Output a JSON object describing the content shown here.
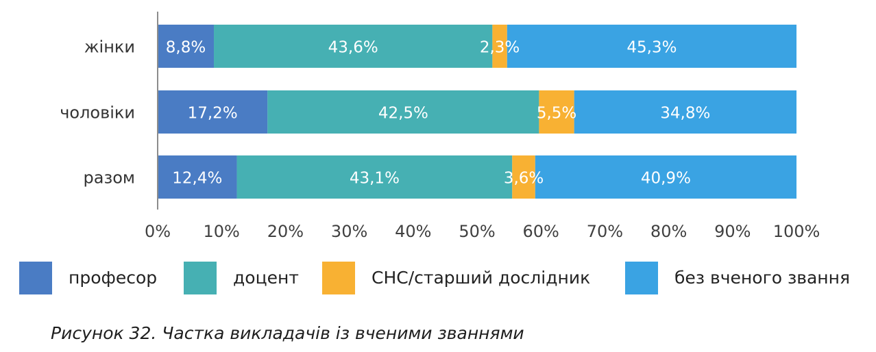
{
  "chart_data": {
    "type": "bar",
    "orientation": "horizontal",
    "stacked": true,
    "categories": [
      "жінки",
      "чоловіки",
      "разом"
    ],
    "series": [
      {
        "name": "професор",
        "color": "#4a7cc4",
        "values": [
          8.8,
          17.2,
          12.4
        ],
        "labels": [
          "8,8%",
          "17,2%",
          "12,4%"
        ]
      },
      {
        "name": "доцент",
        "color": "#46b0b3",
        "values": [
          43.6,
          42.5,
          43.1
        ],
        "labels": [
          "43,6%",
          "42,5%",
          "43,1%"
        ]
      },
      {
        "name": "СНС/старший дослідник",
        "color": "#f8b133",
        "values": [
          2.3,
          5.5,
          3.6
        ],
        "labels": [
          "2,3%",
          "5,5%",
          "3,6%"
        ]
      },
      {
        "name": "без вченого звання",
        "color": "#3aa3e3",
        "values": [
          45.3,
          34.8,
          40.9
        ],
        "labels": [
          "45,3%",
          "34,8%",
          "40,9%"
        ]
      }
    ],
    "xlim": [
      0,
      100
    ],
    "x_ticks": [
      "0%",
      "10%",
      "20%",
      "30%",
      "40%",
      "50%",
      "60%",
      "70%",
      "80%",
      "90%",
      "100%"
    ],
    "grid": false,
    "legend_position": "bottom"
  },
  "caption": "Рисунок 32. Частка викладачів із вченими званнями"
}
